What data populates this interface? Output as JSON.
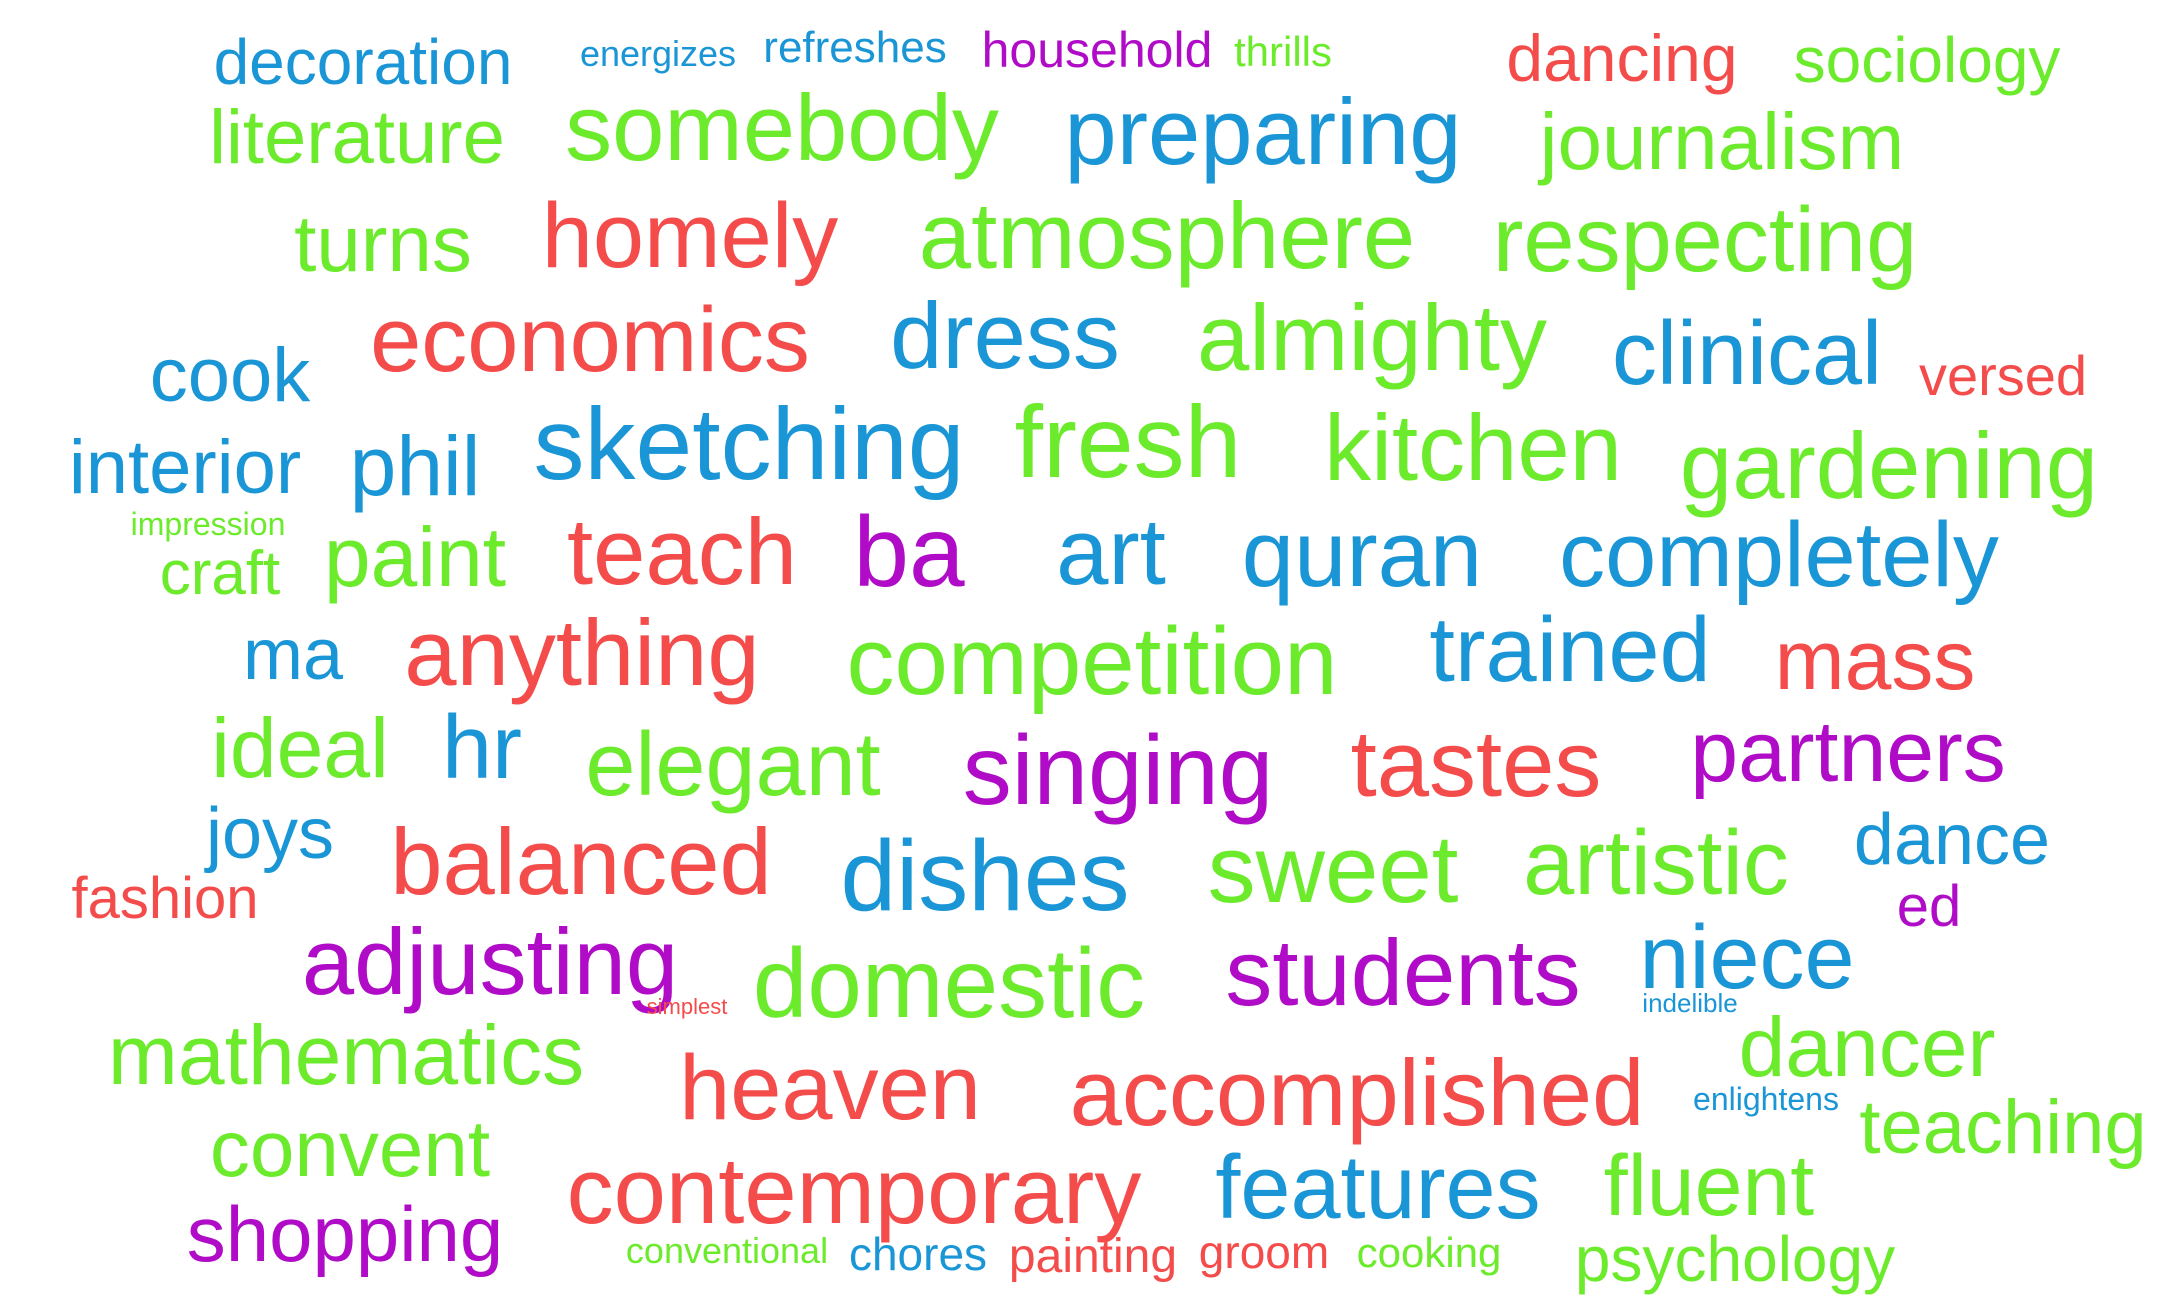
{
  "palette": {
    "red": "#f44b4b",
    "green": "#6ceb2c",
    "blue": "#1a96d6",
    "purple": "#b00cc8"
  },
  "words": [
    {
      "text": "decoration",
      "color": "blue"
    },
    {
      "text": "energizes",
      "color": "blue"
    },
    {
      "text": "refreshes",
      "color": "blue"
    },
    {
      "text": "household",
      "color": "purple"
    },
    {
      "text": "thrills",
      "color": "green"
    },
    {
      "text": "dancing",
      "color": "red"
    },
    {
      "text": "sociology",
      "color": "green"
    },
    {
      "text": "literature",
      "color": "green"
    },
    {
      "text": "somebody",
      "color": "green"
    },
    {
      "text": "preparing",
      "color": "blue"
    },
    {
      "text": "journalism",
      "color": "green"
    },
    {
      "text": "turns",
      "color": "green"
    },
    {
      "text": "homely",
      "color": "red"
    },
    {
      "text": "atmosphere",
      "color": "green"
    },
    {
      "text": "respecting",
      "color": "green"
    },
    {
      "text": "cook",
      "color": "blue"
    },
    {
      "text": "economics",
      "color": "red"
    },
    {
      "text": "dress",
      "color": "blue"
    },
    {
      "text": "almighty",
      "color": "green"
    },
    {
      "text": "clinical",
      "color": "blue"
    },
    {
      "text": "versed",
      "color": "red"
    },
    {
      "text": "interior",
      "color": "blue"
    },
    {
      "text": "phil",
      "color": "blue"
    },
    {
      "text": "sketching",
      "color": "blue"
    },
    {
      "text": "fresh",
      "color": "green"
    },
    {
      "text": "kitchen",
      "color": "green"
    },
    {
      "text": "gardening",
      "color": "green"
    },
    {
      "text": "impression",
      "color": "green"
    },
    {
      "text": "craft",
      "color": "green"
    },
    {
      "text": "paint",
      "color": "green"
    },
    {
      "text": "teach",
      "color": "red"
    },
    {
      "text": "ba",
      "color": "purple"
    },
    {
      "text": "art",
      "color": "blue"
    },
    {
      "text": "quran",
      "color": "blue"
    },
    {
      "text": "completely",
      "color": "blue"
    },
    {
      "text": "ma",
      "color": "blue"
    },
    {
      "text": "anything",
      "color": "red"
    },
    {
      "text": "competition",
      "color": "green"
    },
    {
      "text": "trained",
      "color": "blue"
    },
    {
      "text": "mass",
      "color": "red"
    },
    {
      "text": "ideal",
      "color": "green"
    },
    {
      "text": "hr",
      "color": "blue"
    },
    {
      "text": "elegant",
      "color": "green"
    },
    {
      "text": "singing",
      "color": "purple"
    },
    {
      "text": "tastes",
      "color": "red"
    },
    {
      "text": "partners",
      "color": "purple"
    },
    {
      "text": "joys",
      "color": "blue"
    },
    {
      "text": "balanced",
      "color": "red"
    },
    {
      "text": "dishes",
      "color": "blue"
    },
    {
      "text": "sweet",
      "color": "green"
    },
    {
      "text": "artistic",
      "color": "green"
    },
    {
      "text": "dance",
      "color": "blue"
    },
    {
      "text": "fashion",
      "color": "red"
    },
    {
      "text": "ed",
      "color": "purple"
    },
    {
      "text": "adjusting",
      "color": "purple"
    },
    {
      "text": "domestic",
      "color": "green"
    },
    {
      "text": "students",
      "color": "purple"
    },
    {
      "text": "niece",
      "color": "blue"
    },
    {
      "text": "simplest",
      "color": "red"
    },
    {
      "text": "indelible",
      "color": "blue"
    },
    {
      "text": "mathematics",
      "color": "green"
    },
    {
      "text": "heaven",
      "color": "red"
    },
    {
      "text": "accomplished",
      "color": "red"
    },
    {
      "text": "dancer",
      "color": "green"
    },
    {
      "text": "enlightens",
      "color": "blue"
    },
    {
      "text": "teaching",
      "color": "green"
    },
    {
      "text": "convent",
      "color": "green"
    },
    {
      "text": "contemporary",
      "color": "red"
    },
    {
      "text": "features",
      "color": "blue"
    },
    {
      "text": "fluent",
      "color": "green"
    },
    {
      "text": "shopping",
      "color": "purple"
    },
    {
      "text": "conventional",
      "color": "green"
    },
    {
      "text": "chores",
      "color": "blue"
    },
    {
      "text": "painting",
      "color": "red"
    },
    {
      "text": "groom",
      "color": "red"
    },
    {
      "text": "cooking",
      "color": "green"
    },
    {
      "text": "psychology",
      "color": "green"
    }
  ]
}
